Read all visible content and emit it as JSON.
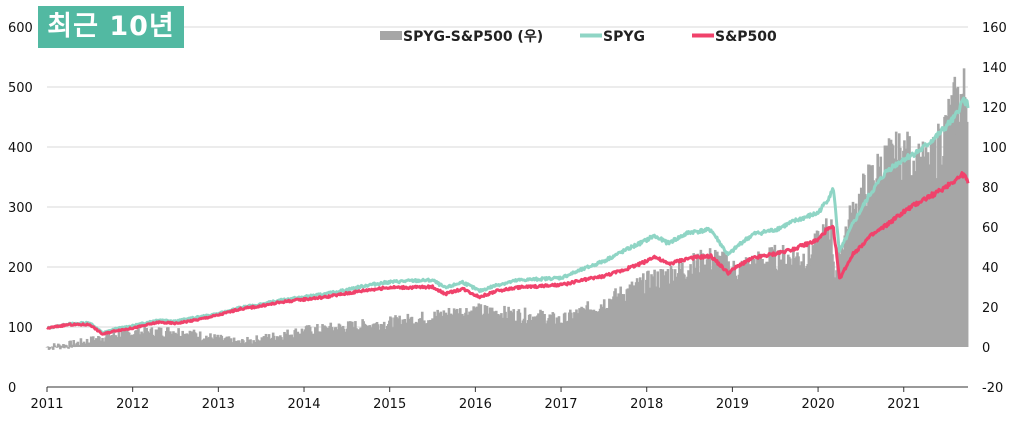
{
  "badge": {
    "text": "최근 10년",
    "color": "#52b9a2"
  },
  "chart_data": {
    "type": "line",
    "title": "",
    "xlabel": "",
    "ylabel": "",
    "x_ticks": [
      "2011",
      "2012",
      "2013",
      "2014",
      "2015",
      "2016",
      "2017",
      "2018",
      "2019",
      "2020",
      "2021"
    ],
    "xlim": [
      2011.0,
      2021.75
    ],
    "left_axis": {
      "ticks": [
        0,
        100,
        200,
        300,
        400,
        500,
        600
      ],
      "ylim": [
        0,
        600
      ]
    },
    "right_axis": {
      "ticks": [
        -20,
        0,
        20,
        40,
        60,
        80,
        100,
        120,
        140,
        160
      ],
      "ylim": [
        -20,
        160
      ]
    },
    "grid": true,
    "legend_position": "top-center",
    "series": [
      {
        "name": "SPYG-S&P500 (우)",
        "type": "bar",
        "axis": "right",
        "color": "#a6a6a6",
        "x": [
          2011.0,
          2011.25,
          2011.5,
          2011.75,
          2012.0,
          2012.5,
          2013.0,
          2013.25,
          2013.5,
          2014.0,
          2014.5,
          2015.0,
          2015.5,
          2015.75,
          2016.0,
          2016.5,
          2016.8,
          2017.0,
          2017.5,
          2018.0,
          2018.5,
          2018.8,
          2019.0,
          2019.5,
          2019.9,
          2020.15,
          2020.2,
          2020.3,
          2020.45,
          2020.6,
          2020.8,
          2021.0,
          2021.3,
          2021.6,
          2021.75
        ],
        "values": [
          0,
          1,
          3,
          6,
          7,
          8,
          4,
          2,
          4,
          8,
          10,
          12,
          15,
          17,
          18,
          16,
          15,
          13,
          22,
          32,
          40,
          44,
          38,
          44,
          45,
          60,
          35,
          55,
          70,
          82,
          92,
          96,
          88,
          120,
          128
        ]
      },
      {
        "name": "SPYG",
        "type": "line",
        "axis": "left",
        "color": "#8fd5c5",
        "x": [
          2011.0,
          2011.25,
          2011.5,
          2011.65,
          2011.8,
          2012.0,
          2012.3,
          2012.5,
          2012.75,
          2013.0,
          2013.25,
          2013.5,
          2013.75,
          2014.0,
          2014.25,
          2014.5,
          2014.75,
          2015.0,
          2015.25,
          2015.5,
          2015.65,
          2015.85,
          2016.05,
          2016.25,
          2016.5,
          2016.75,
          2017.0,
          2017.25,
          2017.5,
          2017.75,
          2018.0,
          2018.08,
          2018.25,
          2018.5,
          2018.75,
          2018.95,
          2019.1,
          2019.25,
          2019.5,
          2019.75,
          2020.0,
          2020.1,
          2020.18,
          2020.25,
          2020.4,
          2020.6,
          2020.8,
          2021.0,
          2021.2,
          2021.4,
          2021.6,
          2021.7,
          2021.75
        ],
        "values": [
          98,
          105,
          107,
          90,
          97,
          102,
          112,
          110,
          116,
          122,
          132,
          138,
          145,
          150,
          155,
          162,
          170,
          175,
          177,
          178,
          165,
          175,
          160,
          170,
          178,
          180,
          182,
          196,
          210,
          228,
          245,
          252,
          240,
          258,
          262,
          220,
          240,
          255,
          262,
          278,
          290,
          310,
          330,
          225,
          270,
          320,
          360,
          380,
          395,
          420,
          450,
          480,
          470
        ]
      },
      {
        "name": "S&P500",
        "type": "line",
        "axis": "left",
        "color": "#f0426b",
        "x": [
          2011.0,
          2011.25,
          2011.5,
          2011.65,
          2011.8,
          2012.0,
          2012.3,
          2012.5,
          2012.75,
          2013.0,
          2013.25,
          2013.5,
          2013.75,
          2014.0,
          2014.25,
          2014.5,
          2014.75,
          2015.0,
          2015.25,
          2015.5,
          2015.65,
          2015.85,
          2016.05,
          2016.25,
          2016.5,
          2016.75,
          2017.0,
          2017.25,
          2017.5,
          2017.75,
          2018.0,
          2018.08,
          2018.25,
          2018.5,
          2018.75,
          2018.95,
          2019.1,
          2019.25,
          2019.5,
          2019.75,
          2020.0,
          2020.1,
          2020.18,
          2020.25,
          2020.4,
          2020.6,
          2020.8,
          2021.0,
          2021.2,
          2021.4,
          2021.6,
          2021.7,
          2021.75
        ],
        "values": [
          98,
          104,
          104,
          88,
          94,
          98,
          108,
          106,
          112,
          120,
          130,
          135,
          142,
          146,
          150,
          156,
          162,
          166,
          166,
          167,
          155,
          164,
          150,
          160,
          166,
          168,
          170,
          178,
          185,
          196,
          210,
          218,
          205,
          215,
          218,
          190,
          205,
          215,
          222,
          232,
          245,
          262,
          265,
          180,
          220,
          250,
          270,
          292,
          310,
          325,
          345,
          355,
          340
        ]
      }
    ]
  }
}
